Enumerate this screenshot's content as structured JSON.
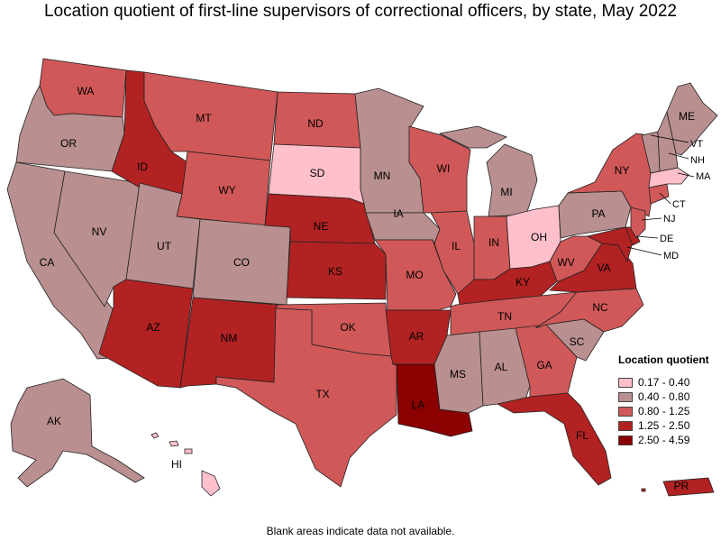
{
  "title": "Location quotient of first-line supervisors of correctional officers, by state, May 2022",
  "footnote": "Blank areas indicate data not available.",
  "legend": {
    "title": "Location quotient",
    "bins": [
      {
        "label": "0.17 - 0.40",
        "color": "#ffc0cb"
      },
      {
        "label": "0.40 - 0.80",
        "color": "#b98f8f"
      },
      {
        "label": "0.80 - 1.25",
        "color": "#d05858"
      },
      {
        "label": "1.25 - 2.50",
        "color": "#b22222"
      },
      {
        "label": "2.50 - 4.59",
        "color": "#8b0000"
      }
    ]
  },
  "states": {
    "WA": 2,
    "OR": 1,
    "CA": 1,
    "NV": 1,
    "ID": 3,
    "MT": 2,
    "WY": 2,
    "UT": 1,
    "CO": 1,
    "AZ": 3,
    "NM": 3,
    "ND": 2,
    "SD": 0,
    "NE": 3,
    "KS": 3,
    "OK": 2,
    "TX": 2,
    "MN": 1,
    "IA": 1,
    "MO": 2,
    "AR": 3,
    "LA": 4,
    "WI": 2,
    "IL": 2,
    "MI": 1,
    "IN": 2,
    "OH": 0,
    "KY": 3,
    "TN": 2,
    "MS": 1,
    "AL": 1,
    "GA": 2,
    "FL": 3,
    "SC": 1,
    "NC": 2,
    "VA": 3,
    "WV": 2,
    "PA": 1,
    "NY": 2,
    "VT": 1,
    "NH": 1,
    "ME": 1,
    "MA": 0,
    "CT": 2,
    "NJ": 2,
    "DE": 3,
    "MD": 3,
    "AK": 1,
    "HI": 0,
    "PR": 3
  },
  "labels": [
    "WA",
    "OR",
    "CA",
    "NV",
    "ID",
    "MT",
    "WY",
    "UT",
    "CO",
    "AZ",
    "NM",
    "ND",
    "SD",
    "NE",
    "KS",
    "OK",
    "TX",
    "MN",
    "IA",
    "MO",
    "AR",
    "LA",
    "WI",
    "IL",
    "MI",
    "IN",
    "OH",
    "KY",
    "TN",
    "MS",
    "AL",
    "GA",
    "FL",
    "SC",
    "NC",
    "VA",
    "WV",
    "PA",
    "NY",
    "ME",
    "AK",
    "HI",
    "PR",
    "VT",
    "NH",
    "MA",
    "CT",
    "NJ",
    "DE",
    "MD"
  ]
}
